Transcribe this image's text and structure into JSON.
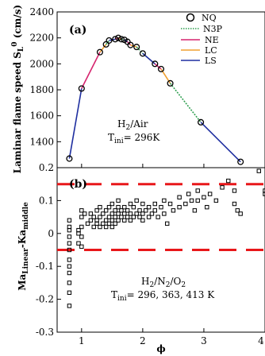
{
  "chart_data": [
    {
      "type": "line",
      "panel_label": "(a)",
      "ylabel_main": "Laminar flame speed S",
      "ylabel_sub": "L",
      "ylabel_sup": "0",
      "ylabel_units": " (cm/s)",
      "ylim": [
        1200,
        2400
      ],
      "xlim": [
        0.6,
        4.0
      ],
      "yticks": [
        "1400",
        "1600",
        "1800",
        "2000",
        "2200",
        "2400"
      ],
      "annotation_l1_pre": "H",
      "annotation_l1_sub": "2",
      "annotation_l1_post": "/Air",
      "annotation_l2_pre": "T",
      "annotation_l2_sub": "ini",
      "annotation_l2_post": "= 296K",
      "legend": {
        "position": "top-right",
        "entries": [
          {
            "name": "NQ",
            "marker": "circle"
          },
          {
            "name": "N3P",
            "style": "dotted",
            "color": "#2e9e4f"
          },
          {
            "name": "NE",
            "style": "solid",
            "color": "#d6246e"
          },
          {
            "name": "LC",
            "style": "solid",
            "color": "#f0a030"
          },
          {
            "name": "LS",
            "style": "solid",
            "color": "#1f2fa0"
          }
        ]
      },
      "points": [
        {
          "x": 0.8,
          "y": 1270
        },
        {
          "x": 1.0,
          "y": 1810
        },
        {
          "x": 1.3,
          "y": 2090
        },
        {
          "x": 1.4,
          "y": 2150
        },
        {
          "x": 1.45,
          "y": 2180
        },
        {
          "x": 1.55,
          "y": 2190
        },
        {
          "x": 1.6,
          "y": 2200
        },
        {
          "x": 1.65,
          "y": 2190
        },
        {
          "x": 1.7,
          "y": 2185
        },
        {
          "x": 1.75,
          "y": 2170
        },
        {
          "x": 1.8,
          "y": 2145
        },
        {
          "x": 1.9,
          "y": 2130
        },
        {
          "x": 2.0,
          "y": 2080
        },
        {
          "x": 2.2,
          "y": 2000
        },
        {
          "x": 2.3,
          "y": 1960
        },
        {
          "x": 2.45,
          "y": 1850
        },
        {
          "x": 2.95,
          "y": 1550
        },
        {
          "x": 3.6,
          "y": 1245
        }
      ]
    },
    {
      "type": "scatter",
      "panel_label": "(b)",
      "ylabel_main": "Ma",
      "ylabel_sub": "Linear",
      "ylabel_mid": "-Ka",
      "ylabel_sub2": "middle",
      "ylim": [
        -0.3,
        0.2
      ],
      "xlim": [
        0.6,
        4.0
      ],
      "yticks": [
        "0.2",
        "0.1",
        "0",
        "-0.1",
        "-0.2",
        "-0.3"
      ],
      "xticks": [
        "1",
        "2",
        "3",
        "4"
      ],
      "xlabel": "ϕ",
      "reference_lines": [
        0.15,
        -0.05
      ],
      "annotation_l1_pre": "H",
      "annotation_l1_sub1": "2",
      "annotation_l1_mid1": "/N",
      "annotation_l1_sub2": "2",
      "annotation_l1_mid2": "/O",
      "annotation_l1_sub3": "2",
      "annotation_l2_pre": "T",
      "annotation_l2_sub": "ini",
      "annotation_l2_post": "= 296, 363, 413 K",
      "points": [
        {
          "x": 0.8,
          "y": -0.22
        },
        {
          "x": 0.8,
          "y": -0.18
        },
        {
          "x": 0.8,
          "y": -0.15
        },
        {
          "x": 0.8,
          "y": -0.12
        },
        {
          "x": 0.8,
          "y": -0.1
        },
        {
          "x": 0.8,
          "y": -0.08
        },
        {
          "x": 0.8,
          "y": -0.05
        },
        {
          "x": 0.8,
          "y": -0.03
        },
        {
          "x": 0.8,
          "y": -0.01
        },
        {
          "x": 0.8,
          "y": 0.01
        },
        {
          "x": 0.8,
          "y": 0.02
        },
        {
          "x": 0.8,
          "y": 0.04
        },
        {
          "x": 0.95,
          "y": -0.03
        },
        {
          "x": 0.95,
          "y": 0.0
        },
        {
          "x": 0.95,
          "y": 0.01
        },
        {
          "x": 1.0,
          "y": -0.04
        },
        {
          "x": 1.0,
          "y": -0.01
        },
        {
          "x": 1.0,
          "y": 0.02
        },
        {
          "x": 1.0,
          "y": 0.05
        },
        {
          "x": 1.0,
          "y": 0.07
        },
        {
          "x": 1.05,
          "y": 0.06
        },
        {
          "x": 1.1,
          "y": 0.03
        },
        {
          "x": 1.15,
          "y": 0.04
        },
        {
          "x": 1.15,
          "y": 0.06
        },
        {
          "x": 1.2,
          "y": 0.02
        },
        {
          "x": 1.2,
          "y": 0.05
        },
        {
          "x": 1.25,
          "y": 0.03
        },
        {
          "x": 1.25,
          "y": 0.07
        },
        {
          "x": 1.25,
          "y": 0.04
        },
        {
          "x": 1.3,
          "y": 0.02
        },
        {
          "x": 1.3,
          "y": 0.05
        },
        {
          "x": 1.3,
          "y": 0.08
        },
        {
          "x": 1.35,
          "y": 0.03
        },
        {
          "x": 1.35,
          "y": 0.06
        },
        {
          "x": 1.4,
          "y": 0.04
        },
        {
          "x": 1.4,
          "y": 0.07
        },
        {
          "x": 1.4,
          "y": 0.02
        },
        {
          "x": 1.45,
          "y": 0.05
        },
        {
          "x": 1.45,
          "y": 0.08
        },
        {
          "x": 1.45,
          "y": 0.03
        },
        {
          "x": 1.5,
          "y": 0.06
        },
        {
          "x": 1.5,
          "y": 0.04
        },
        {
          "x": 1.5,
          "y": 0.09
        },
        {
          "x": 1.5,
          "y": 0.02
        },
        {
          "x": 1.55,
          "y": 0.05
        },
        {
          "x": 1.55,
          "y": 0.07
        },
        {
          "x": 1.55,
          "y": 0.03
        },
        {
          "x": 1.6,
          "y": 0.06
        },
        {
          "x": 1.6,
          "y": 0.08
        },
        {
          "x": 1.6,
          "y": 0.04
        },
        {
          "x": 1.6,
          "y": 0.1
        },
        {
          "x": 1.65,
          "y": 0.05
        },
        {
          "x": 1.65,
          "y": 0.07
        },
        {
          "x": 1.7,
          "y": 0.06
        },
        {
          "x": 1.7,
          "y": 0.04
        },
        {
          "x": 1.7,
          "y": 0.08
        },
        {
          "x": 1.75,
          "y": 0.05
        },
        {
          "x": 1.75,
          "y": 0.07
        },
        {
          "x": 1.8,
          "y": 0.06
        },
        {
          "x": 1.8,
          "y": 0.09
        },
        {
          "x": 1.8,
          "y": 0.04
        },
        {
          "x": 1.85,
          "y": 0.05
        },
        {
          "x": 1.85,
          "y": 0.08
        },
        {
          "x": 1.9,
          "y": 0.06
        },
        {
          "x": 1.9,
          "y": 0.1
        },
        {
          "x": 1.95,
          "y": 0.07
        },
        {
          "x": 1.95,
          "y": 0.05
        },
        {
          "x": 2.0,
          "y": 0.06
        },
        {
          "x": 2.0,
          "y": 0.09
        },
        {
          "x": 2.0,
          "y": 0.04
        },
        {
          "x": 2.05,
          "y": 0.07
        },
        {
          "x": 2.1,
          "y": 0.08
        },
        {
          "x": 2.1,
          "y": 0.05
        },
        {
          "x": 2.15,
          "y": 0.06
        },
        {
          "x": 2.2,
          "y": 0.09
        },
        {
          "x": 2.2,
          "y": 0.07
        },
        {
          "x": 2.25,
          "y": 0.05
        },
        {
          "x": 2.3,
          "y": 0.08
        },
        {
          "x": 2.35,
          "y": 0.1
        },
        {
          "x": 2.35,
          "y": 0.06
        },
        {
          "x": 2.4,
          "y": 0.03
        },
        {
          "x": 2.45,
          "y": 0.09
        },
        {
          "x": 2.5,
          "y": 0.07
        },
        {
          "x": 2.6,
          "y": 0.11
        },
        {
          "x": 2.6,
          "y": 0.08
        },
        {
          "x": 2.7,
          "y": 0.09
        },
        {
          "x": 2.75,
          "y": 0.12
        },
        {
          "x": 2.8,
          "y": 0.1
        },
        {
          "x": 2.85,
          "y": 0.07
        },
        {
          "x": 2.9,
          "y": 0.13
        },
        {
          "x": 2.9,
          "y": 0.1
        },
        {
          "x": 3.0,
          "y": 0.11
        },
        {
          "x": 3.05,
          "y": 0.08
        },
        {
          "x": 3.1,
          "y": 0.12
        },
        {
          "x": 3.2,
          "y": 0.1
        },
        {
          "x": 3.3,
          "y": 0.14
        },
        {
          "x": 3.4,
          "y": 0.16
        },
        {
          "x": 3.5,
          "y": 0.13
        },
        {
          "x": 3.5,
          "y": 0.09
        },
        {
          "x": 3.55,
          "y": 0.07
        },
        {
          "x": 3.6,
          "y": 0.06
        },
        {
          "x": 3.9,
          "y": 0.19
        },
        {
          "x": 4.0,
          "y": 0.13
        },
        {
          "x": 4.0,
          "y": 0.12
        }
      ]
    }
  ]
}
